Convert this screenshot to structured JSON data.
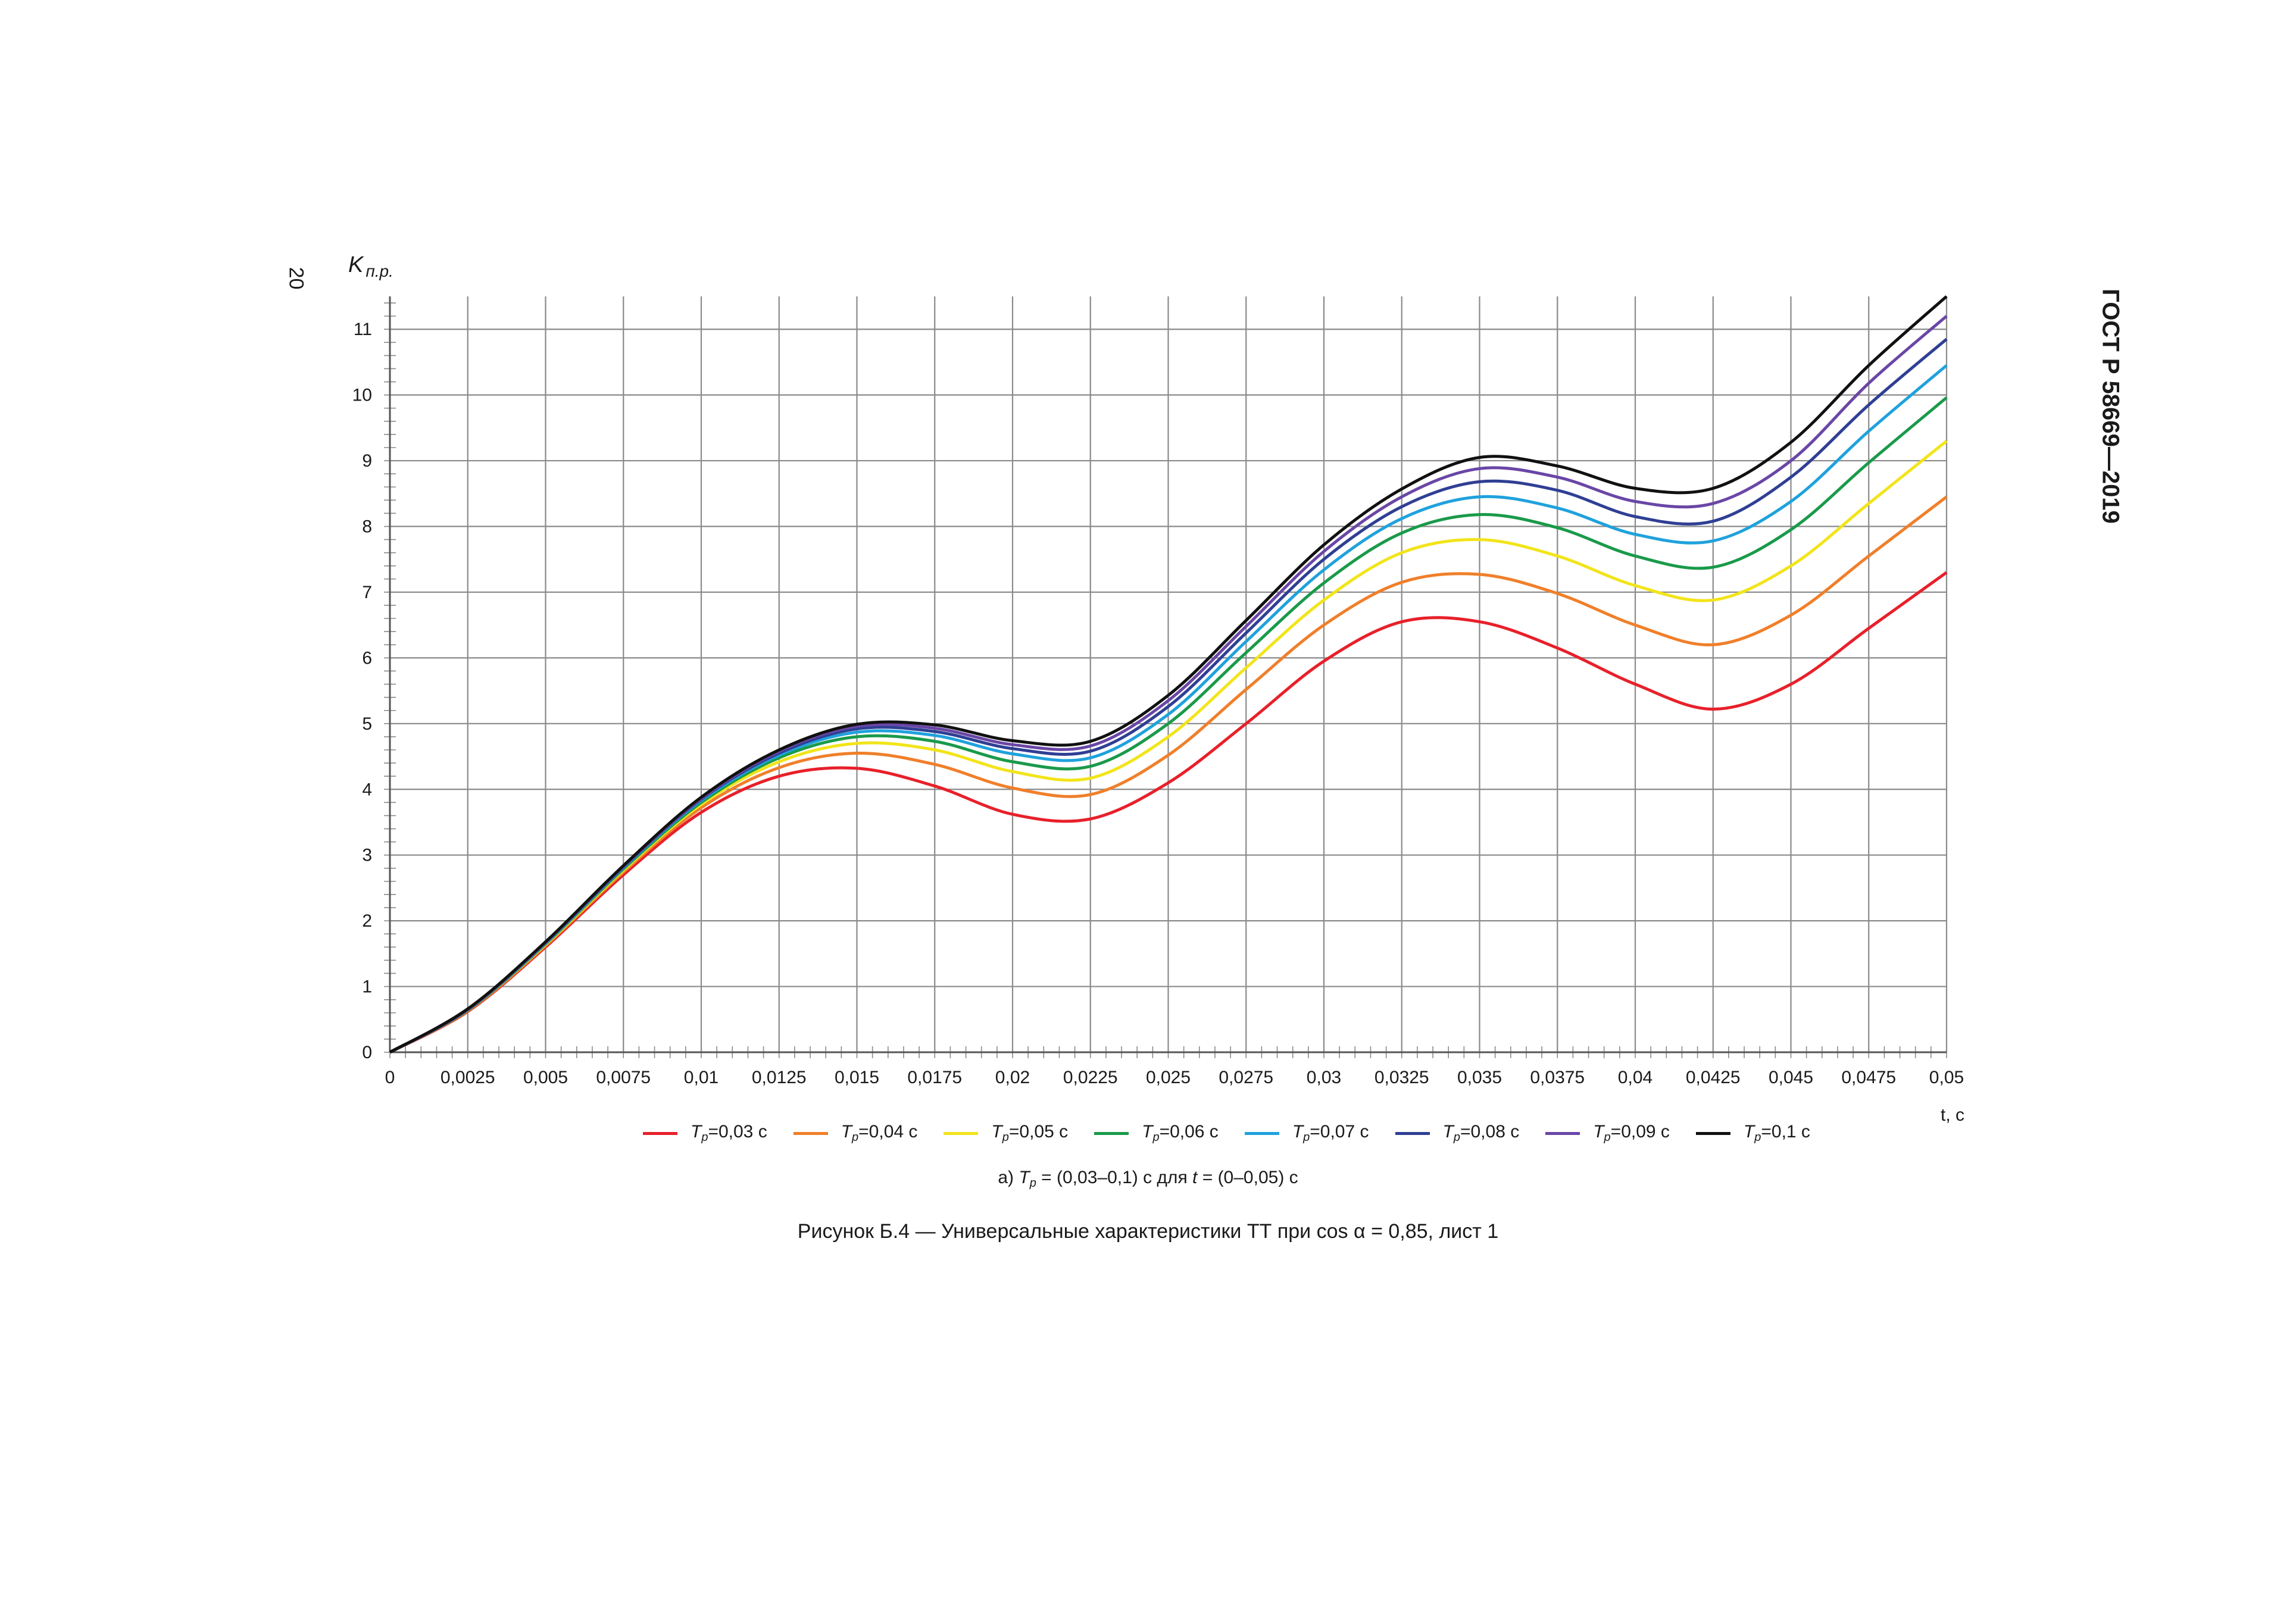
{
  "page": {
    "page_number": "20",
    "doc_code": "ГОСТ Р 58669—2019",
    "subcaption": {
      "prefix": "а) ",
      "T": "T",
      "sub": "p",
      "mid1": " = (0,03–0,1) с для ",
      "t": "t",
      "mid2": " = (0–0,05) с"
    },
    "caption": "Рисунок Б.4 — Универсальные характеристики ТТ при cos α = 0,85, лист 1"
  },
  "chart_data": {
    "type": "line",
    "title": "",
    "ylabel_main": "K",
    "ylabel_sub": "п.р.",
    "xlabel": "t, с",
    "xlim": [
      0,
      0.05
    ],
    "ylim": [
      0,
      11.5
    ],
    "x_ticks": [
      "0",
      "0,0025",
      "0,005",
      "0,0075",
      "0,01",
      "0,0125",
      "0,015",
      "0,0175",
      "0,02",
      "0,0225",
      "0,025",
      "0,0275",
      "0,03",
      "0,0325",
      "0,035",
      "0,0375",
      "0,04",
      "0,0425",
      "0,045",
      "0,0475",
      "0,05"
    ],
    "y_ticks": [
      "0",
      "1",
      "2",
      "3",
      "4",
      "5",
      "6",
      "7",
      "8",
      "9",
      "10",
      "11"
    ],
    "grid": true,
    "x": [
      0,
      0.0025,
      0.005,
      0.0075,
      0.01,
      0.0125,
      0.015,
      0.0175,
      0.02,
      0.0225,
      0.025,
      0.0275,
      0.03,
      0.0325,
      0.035,
      0.0375,
      0.04,
      0.0425,
      0.045,
      0.0475,
      0.05
    ],
    "series": [
      {
        "name": "Tp=0,03 с",
        "legend_T": "T",
        "legend_sub": "p",
        "legend_rest": "=0,03 с",
        "color": "#e8202a",
        "values": [
          0,
          0.62,
          1.6,
          2.7,
          3.65,
          4.2,
          4.32,
          4.05,
          3.62,
          3.55,
          4.1,
          5.0,
          5.95,
          6.55,
          6.55,
          6.15,
          5.6,
          5.22,
          5.6,
          6.45,
          7.3
        ]
      },
      {
        "name": "Tp=0,04 с",
        "legend_T": "T",
        "legend_sub": "p",
        "legend_rest": "=0,04 с",
        "color": "#f07f2a",
        "values": [
          0,
          0.63,
          1.62,
          2.74,
          3.72,
          4.33,
          4.55,
          4.38,
          4.02,
          3.92,
          4.52,
          5.52,
          6.5,
          7.15,
          7.27,
          6.98,
          6.5,
          6.2,
          6.65,
          7.55,
          8.45
        ]
      },
      {
        "name": "Tp=0,05 с",
        "legend_T": "T",
        "legend_sub": "p",
        "legend_rest": "=0,05 с",
        "color": "#f2e41a",
        "values": [
          0,
          0.64,
          1.64,
          2.77,
          3.77,
          4.42,
          4.7,
          4.6,
          4.27,
          4.17,
          4.8,
          5.85,
          6.88,
          7.6,
          7.8,
          7.55,
          7.1,
          6.88,
          7.4,
          8.35,
          9.3
        ]
      },
      {
        "name": "Tp=0,06 с",
        "legend_T": "T",
        "legend_sub": "p",
        "legend_rest": "=0,06 с",
        "color": "#1a9a4a",
        "values": [
          0,
          0.64,
          1.65,
          2.79,
          3.8,
          4.48,
          4.8,
          4.73,
          4.42,
          4.35,
          5.0,
          6.08,
          7.14,
          7.9,
          8.18,
          7.98,
          7.55,
          7.38,
          7.95,
          8.97,
          9.96
        ]
      },
      {
        "name": "Tp=0,07 с",
        "legend_T": "T",
        "legend_sub": "p",
        "legend_rest": "=0,07 с",
        "color": "#1fa2dc",
        "values": [
          0,
          0.65,
          1.66,
          2.81,
          3.83,
          4.52,
          4.87,
          4.82,
          4.54,
          4.48,
          5.14,
          6.25,
          7.34,
          8.12,
          8.45,
          8.28,
          7.88,
          7.78,
          8.38,
          9.45,
          10.45
        ]
      },
      {
        "name": "Tp=0,08 с",
        "legend_T": "T",
        "legend_sub": "p",
        "legend_rest": "=0,08 с",
        "color": "#2f3f94",
        "values": [
          0,
          0.65,
          1.67,
          2.82,
          3.85,
          4.55,
          4.92,
          4.88,
          4.62,
          4.58,
          5.26,
          6.38,
          7.5,
          8.3,
          8.68,
          8.55,
          8.15,
          8.08,
          8.75,
          9.85,
          10.85
        ]
      },
      {
        "name": "Tp=0,09 с",
        "legend_T": "T",
        "legend_sub": "p",
        "legend_rest": "=0,09 с",
        "color": "#6a46a6",
        "values": [
          0,
          0.65,
          1.67,
          2.83,
          3.86,
          4.58,
          4.96,
          4.93,
          4.68,
          4.66,
          5.35,
          6.48,
          7.62,
          8.45,
          8.88,
          8.75,
          8.38,
          8.35,
          9.0,
          10.18,
          11.2
        ]
      },
      {
        "name": "Tp=0,1 с",
        "legend_T": "T",
        "legend_sub": "p",
        "legend_rest": "=0,1 с",
        "color": "#111111",
        "values": [
          0,
          0.66,
          1.68,
          2.84,
          3.88,
          4.6,
          4.99,
          4.98,
          4.74,
          4.73,
          5.43,
          6.57,
          7.72,
          8.57,
          9.05,
          8.92,
          8.58,
          8.58,
          9.28,
          10.45,
          11.5
        ]
      }
    ]
  }
}
